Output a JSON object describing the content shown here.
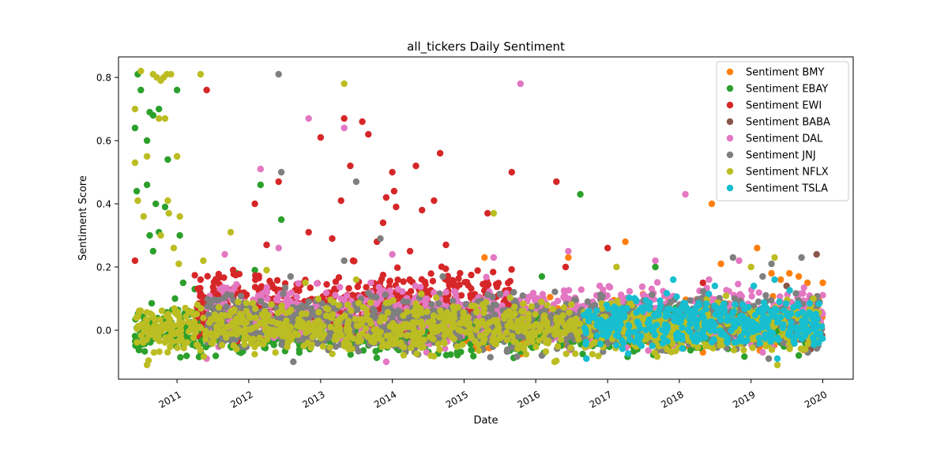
{
  "chart_data": {
    "type": "scatter",
    "title": "all_tickers Daily Sentiment",
    "xlabel": "Date",
    "ylabel": "Sentiment Score",
    "x_type": "date",
    "xlim": [
      "2010-03-09",
      "2020-06-04"
    ],
    "ylim": [
      -0.155,
      0.865
    ],
    "x_ticks": [
      "2011",
      "2012",
      "2013",
      "2014",
      "2015",
      "2016",
      "2017",
      "2018",
      "2019",
      "2020"
    ],
    "y_ticks": [
      -0.0,
      0.2,
      0.4,
      0.6,
      0.8
    ],
    "y_tick_labels": [
      "0.0",
      "0.2",
      "0.4",
      "0.6",
      "0.8"
    ],
    "grid": false,
    "legend_placement": "top-right",
    "series": [
      {
        "name": "Sentiment BMY",
        "color": "#ff7f0e",
        "range": [
          "2015-01-01",
          "2020-01-01"
        ],
        "band": [
          -0.06,
          0.1
        ],
        "outliers": [
          [
            "2015-04-15",
            0.23
          ],
          [
            "2016-06-15",
            0.23
          ],
          [
            "2017-04-01",
            0.28
          ],
          [
            "2018-06-15",
            0.4
          ],
          [
            "2018-08-01",
            0.21
          ],
          [
            "2019-02-01",
            0.26
          ],
          [
            "2019-04-15",
            0.18
          ],
          [
            "2019-06-01",
            0.16
          ],
          [
            "2019-07-15",
            0.18
          ],
          [
            "2019-09-01",
            0.17
          ],
          [
            "2019-10-15",
            0.15
          ],
          [
            "2020-01-01",
            0.15
          ],
          [
            "2018-05-01",
            -0.07
          ]
        ]
      },
      {
        "name": "Sentiment EBAY",
        "color": "#2ca02c",
        "range": [
          "2010-06-01",
          "2020-01-01"
        ],
        "band": [
          -0.08,
          0.08
        ],
        "outliers": [
          [
            "2010-06-01",
            0.64
          ],
          [
            "2010-06-15",
            0.81
          ],
          [
            "2010-07-01",
            0.76
          ],
          [
            "2010-08-01",
            0.6
          ],
          [
            "2010-08-15",
            0.69
          ],
          [
            "2010-09-01",
            0.68
          ],
          [
            "2010-10-01",
            0.7
          ],
          [
            "2010-11-15",
            0.54
          ],
          [
            "2011-01-01",
            0.76
          ],
          [
            "2010-06-10",
            0.44
          ],
          [
            "2010-08-01",
            0.46
          ],
          [
            "2010-09-15",
            0.4
          ],
          [
            "2010-11-01",
            0.39
          ],
          [
            "2011-01-15",
            0.3
          ],
          [
            "2010-10-01",
            0.31
          ],
          [
            "2010-08-15",
            0.3
          ],
          [
            "2010-09-01",
            0.25
          ],
          [
            "2012-03-01",
            0.46
          ],
          [
            "2012-06-15",
            0.35
          ],
          [
            "2016-08-15",
            0.43
          ],
          [
            "2016-02-01",
            0.17
          ],
          [
            "2011-02-01",
            0.15
          ],
          [
            "2011-04-01",
            0.13
          ],
          [
            "2011-11-01",
            0.18
          ],
          [
            "2012-02-01",
            0.19
          ],
          [
            "2017-09-01",
            0.2
          ],
          [
            "2019-09-01",
            -0.08
          ]
        ]
      },
      {
        "name": "Sentiment EWI",
        "color": "#d62728",
        "range": [
          "2011-04-01",
          "2015-09-01"
        ],
        "band": [
          -0.02,
          0.2
        ],
        "outliers": [
          [
            "2010-06-01",
            0.22
          ],
          [
            "2011-06-01",
            0.76
          ],
          [
            "2011-05-01",
            0.16
          ],
          [
            "2012-02-01",
            0.4
          ],
          [
            "2012-06-01",
            0.47
          ],
          [
            "2012-04-01",
            0.27
          ],
          [
            "2012-11-01",
            0.31
          ],
          [
            "2013-01-01",
            0.61
          ],
          [
            "2013-03-01",
            0.29
          ],
          [
            "2013-04-15",
            0.41
          ],
          [
            "2013-05-01",
            0.67
          ],
          [
            "2013-06-01",
            0.52
          ],
          [
            "2013-08-01",
            0.66
          ],
          [
            "2013-09-01",
            0.62
          ],
          [
            "2013-10-15",
            0.28
          ],
          [
            "2013-11-15",
            0.34
          ],
          [
            "2013-12-01",
            0.42
          ],
          [
            "2014-01-01",
            0.5
          ],
          [
            "2014-01-10",
            0.44
          ],
          [
            "2014-01-20",
            0.39
          ],
          [
            "2014-05-01",
            0.52
          ],
          [
            "2014-06-01",
            0.38
          ],
          [
            "2014-08-01",
            0.41
          ],
          [
            "2014-09-01",
            0.56
          ],
          [
            "2014-10-01",
            0.27
          ],
          [
            "2015-05-01",
            0.37
          ],
          [
            "2015-09-01",
            0.5
          ],
          [
            "2016-04-15",
            0.47
          ],
          [
            "2017-01-01",
            0.26
          ],
          [
            "2016-06-01",
            0.2
          ],
          [
            "2018-05-01",
            0.15
          ],
          [
            "2013-06-15",
            0.22
          ],
          [
            "2014-04-01",
            0.25
          ]
        ]
      },
      {
        "name": "Sentiment BABA",
        "color": "#8c564b",
        "range": [
          "2019-06-01",
          "2020-01-01"
        ],
        "band": [
          -0.06,
          0.1
        ],
        "outliers": [
          [
            "2019-12-01",
            0.24
          ],
          [
            "2019-07-01",
            0.14
          ],
          [
            "2019-11-01",
            -0.06
          ]
        ]
      },
      {
        "name": "Sentiment DAL",
        "color": "#e377c2",
        "range": [
          "2011-06-01",
          "2020-01-01"
        ],
        "band": [
          -0.05,
          0.15
        ],
        "outliers": [
          [
            "2012-03-01",
            0.51
          ],
          [
            "2012-06-01",
            0.26
          ],
          [
            "2011-09-01",
            0.24
          ],
          [
            "2012-11-01",
            0.67
          ],
          [
            "2013-05-01",
            0.64
          ],
          [
            "2015-06-01",
            0.23
          ],
          [
            "2015-10-15",
            0.78
          ],
          [
            "2016-06-15",
            0.25
          ],
          [
            "2017-09-01",
            0.22
          ],
          [
            "2018-02-01",
            0.43
          ],
          [
            "2018-11-01",
            0.22
          ],
          [
            "2014-01-01",
            0.24
          ],
          [
            "2011-06-01",
            -0.09
          ],
          [
            "2013-12-01",
            -0.1
          ],
          [
            "2019-03-01",
            -0.07
          ],
          [
            "2018-06-01",
            0.16
          ]
        ]
      },
      {
        "name": "Sentiment JNJ",
        "color": "#7f7f7f",
        "range": [
          "2011-06-01",
          "2020-01-01"
        ],
        "band": [
          -0.07,
          0.12
        ],
        "outliers": [
          [
            "2012-06-01",
            0.81
          ],
          [
            "2012-06-15",
            0.5
          ],
          [
            "2012-08-01",
            0.17
          ],
          [
            "2013-07-01",
            0.47
          ],
          [
            "2013-05-01",
            0.22
          ],
          [
            "2013-11-01",
            0.29
          ],
          [
            "2014-09-15",
            0.17
          ],
          [
            "2018-10-01",
            0.23
          ],
          [
            "2019-09-15",
            0.23
          ],
          [
            "2019-03-01",
            0.17
          ],
          [
            "2019-04-15",
            0.21
          ],
          [
            "2012-08-15",
            -0.1
          ],
          [
            "2019-04-01",
            -0.09
          ],
          [
            "2016-02-01",
            -0.08
          ]
        ]
      },
      {
        "name": "Sentiment NFLX",
        "color": "#bcbd22",
        "range": [
          "2010-06-01",
          "2019-12-15"
        ],
        "band": [
          -0.08,
          0.1
        ],
        "outliers": [
          [
            "2010-06-01",
            0.53
          ],
          [
            "2010-06-15",
            0.41
          ],
          [
            "2010-07-01",
            0.82
          ],
          [
            "2010-09-01",
            0.81
          ],
          [
            "2010-09-20",
            0.8
          ],
          [
            "2010-10-10",
            0.79
          ],
          [
            "2010-10-25",
            0.8
          ],
          [
            "2010-11-10",
            0.81
          ],
          [
            "2010-12-01",
            0.81
          ],
          [
            "2011-05-01",
            0.81
          ],
          [
            "2010-06-01",
            0.7
          ],
          [
            "2010-10-01",
            0.67
          ],
          [
            "2010-11-01",
            0.67
          ],
          [
            "2011-01-01",
            0.55
          ],
          [
            "2010-08-01",
            0.55
          ],
          [
            "2010-07-15",
            0.36
          ],
          [
            "2010-11-15",
            0.41
          ],
          [
            "2011-01-15",
            0.36
          ],
          [
            "2010-11-20",
            0.37
          ],
          [
            "2010-10-10",
            0.3
          ],
          [
            "2010-12-15",
            0.26
          ],
          [
            "2011-01-10",
            0.21
          ],
          [
            "2011-05-15",
            0.22
          ],
          [
            "2011-10-01",
            0.31
          ],
          [
            "2012-10-15",
            0.15
          ],
          [
            "2013-05-01",
            0.78
          ],
          [
            "2015-06-01",
            0.37
          ],
          [
            "2012-04-01",
            0.19
          ],
          [
            "2017-02-15",
            0.2
          ],
          [
            "2019-05-01",
            0.23
          ],
          [
            "2019-01-01",
            0.2
          ],
          [
            "2010-08-01",
            -0.11
          ],
          [
            "2019-05-15",
            -0.11
          ],
          [
            "2013-07-01",
            0.16
          ]
        ]
      },
      {
        "name": "Sentiment TSLA",
        "color": "#17becf",
        "range": [
          "2016-09-01",
          "2020-01-01"
        ],
        "band": [
          -0.06,
          0.11
        ],
        "outliers": [
          [
            "2017-12-01",
            0.16
          ],
          [
            "2019-05-01",
            0.16
          ],
          [
            "2019-05-15",
            -0.09
          ],
          [
            "2016-09-15",
            -0.09
          ],
          [
            "2018-07-01",
            0.14
          ],
          [
            "2019-01-15",
            0.14
          ]
        ]
      }
    ]
  }
}
